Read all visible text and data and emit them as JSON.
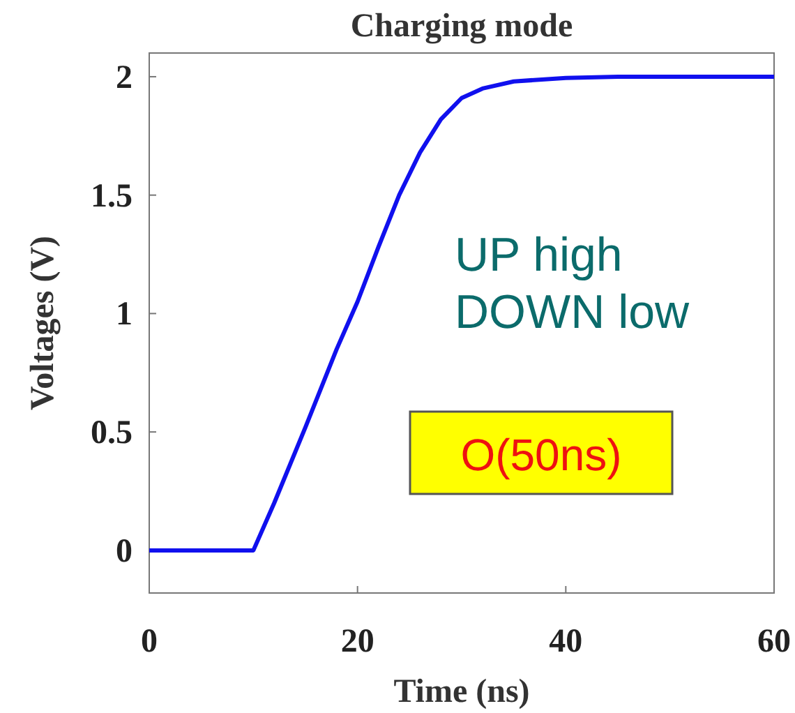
{
  "chart_data": {
    "type": "line",
    "title": "Charging mode",
    "xlabel": "Time (ns)",
    "ylabel": "Voltages (V)",
    "x": [
      0,
      10,
      12,
      15,
      18,
      20,
      22,
      24,
      26,
      28,
      30,
      32,
      35,
      40,
      45,
      60
    ],
    "series": [
      {
        "color": "#1010ee",
        "values": [
          0,
          0,
          0.2,
          0.52,
          0.85,
          1.05,
          1.28,
          1.5,
          1.68,
          1.82,
          1.91,
          1.95,
          1.98,
          1.995,
          2,
          2
        ]
      }
    ],
    "xlim": [
      0,
      60
    ],
    "xticks": [
      0,
      20,
      40,
      60
    ],
    "ylim": [
      -0.18,
      2.1
    ],
    "yticks": [
      0,
      0.5,
      1,
      1.5,
      2
    ],
    "grid": false,
    "marker": "none",
    "line_style": "solid",
    "annotations": [
      "UP high\nDOWN low",
      "O(50ns)"
    ]
  }
}
